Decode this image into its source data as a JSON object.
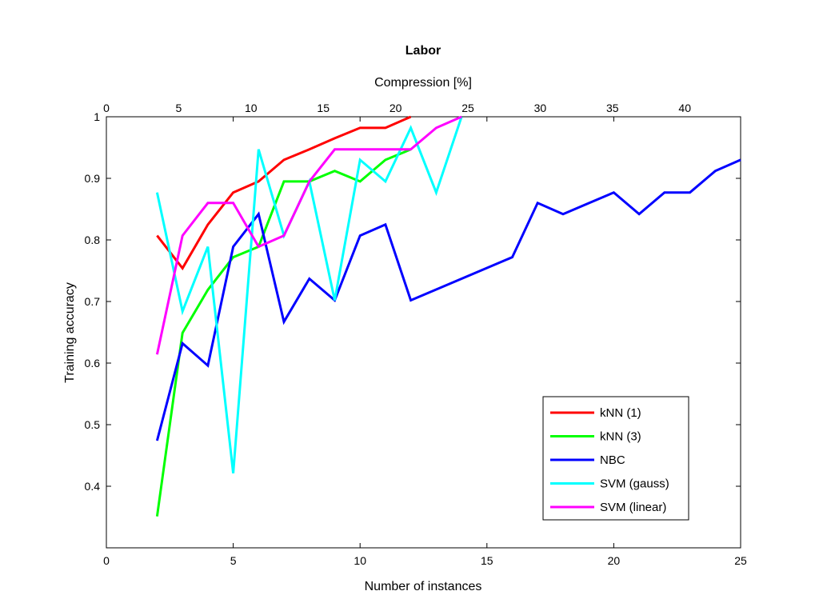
{
  "chart_data": {
    "type": "line",
    "title": "Labor",
    "xlabel": "Number of instances",
    "ylabel": "Training accuracy",
    "x2label": "Compression [%]",
    "xlim": [
      0,
      25
    ],
    "ylim": [
      0.3,
      1.0
    ],
    "x2lim": [
      0,
      43.86
    ],
    "xticks": [
      "0",
      "5",
      "10",
      "15",
      "20",
      "25"
    ],
    "yticks": [
      "0.4",
      "0.5",
      "0.6",
      "0.7",
      "0.8",
      "0.9",
      "1"
    ],
    "x2ticks": [
      "0",
      "5",
      "10",
      "15",
      "20",
      "25",
      "30",
      "35",
      "40"
    ],
    "grid": false,
    "legend_position": "bottom-right",
    "series": [
      {
        "name": "kNN (1)",
        "color": "#ff0000",
        "x": [
          2,
          3,
          4,
          5,
          6,
          7,
          8,
          9,
          10,
          11,
          12
        ],
        "y": [
          0.807,
          0.754,
          0.825,
          0.877,
          0.895,
          0.93,
          0.947,
          0.965,
          0.982,
          0.982,
          1.0
        ]
      },
      {
        "name": "kNN (3)",
        "color": "#00ff00",
        "x": [
          2,
          3,
          4,
          5,
          6,
          7,
          8,
          9,
          10,
          11,
          12
        ],
        "y": [
          0.351,
          0.649,
          0.719,
          0.772,
          0.789,
          0.895,
          0.895,
          0.912,
          0.895,
          0.93,
          0.947
        ]
      },
      {
        "name": "NBC",
        "color": "#0000ff",
        "x": [
          2,
          3,
          4,
          5,
          6,
          7,
          8,
          9,
          10,
          11,
          12,
          16,
          17,
          18,
          20,
          21,
          22,
          23,
          24,
          25
        ],
        "y": [
          0.474,
          0.632,
          0.596,
          0.789,
          0.842,
          0.667,
          0.737,
          0.702,
          0.807,
          0.825,
          0.702,
          0.772,
          0.86,
          0.842,
          0.877,
          0.842,
          0.877,
          0.877,
          0.912,
          0.93
        ]
      },
      {
        "name": "SVM (gauss)",
        "color": "#00ffff",
        "x": [
          2,
          3,
          4,
          5,
          6,
          7,
          8,
          9,
          10,
          11,
          12,
          13,
          14
        ],
        "y": [
          0.877,
          0.684,
          0.789,
          0.421,
          0.947,
          0.807,
          0.895,
          0.702,
          0.93,
          0.895,
          0.982,
          0.877,
          1.0
        ]
      },
      {
        "name": "SVM (linear)",
        "color": "#ff00ff",
        "x": [
          2,
          3,
          4,
          5,
          6,
          7,
          8,
          9,
          10,
          11,
          12,
          13,
          14
        ],
        "y": [
          0.614,
          0.807,
          0.86,
          0.86,
          0.789,
          0.807,
          0.895,
          0.947,
          0.947,
          0.947,
          0.947,
          0.982,
          1.0
        ]
      }
    ]
  }
}
